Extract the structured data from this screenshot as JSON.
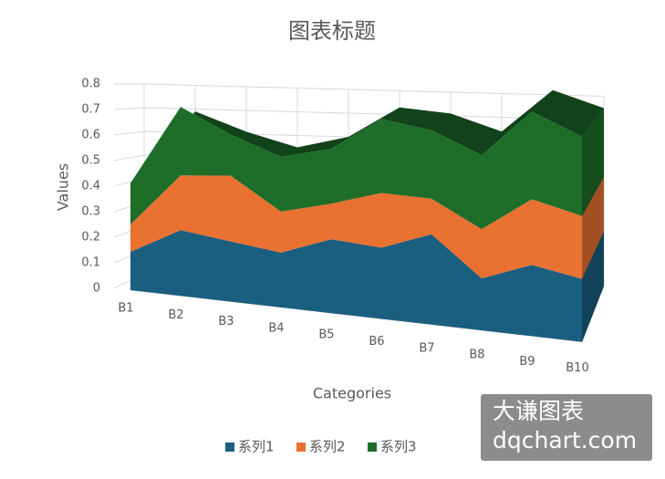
{
  "chart_data": {
    "type": "area3d",
    "title": "图表标题",
    "y_label": "Values",
    "x_label": "Categories",
    "categories": [
      "B1",
      "B2",
      "B3",
      "B4",
      "B5",
      "B6",
      "B7",
      "B8",
      "B9",
      "B10"
    ],
    "series": [
      {
        "name": "系列1",
        "color": "#1a5e80",
        "values": [
          0.14,
          0.24,
          0.22,
          0.2,
          0.27,
          0.26,
          0.33,
          0.19,
          0.26,
          0.23
        ]
      },
      {
        "name": "系列2",
        "color": "#e97132",
        "values": [
          0.1,
          0.2,
          0.24,
          0.15,
          0.13,
          0.2,
          0.13,
          0.18,
          0.24,
          0.23
        ]
      },
      {
        "name": "系列3",
        "color": "#1e6e2a",
        "values": [
          0.15,
          0.25,
          0.15,
          0.2,
          0.2,
          0.27,
          0.25,
          0.27,
          0.32,
          0.29
        ]
      }
    ],
    "ylim": [
      0,
      0.8
    ],
    "yticks": [
      0,
      0.1,
      0.2,
      0.3,
      0.4,
      0.5,
      0.6,
      0.7,
      0.8
    ],
    "grid": true,
    "legend": "bottom",
    "watermark": [
      "大谦图表",
      "dqchart.com"
    ]
  }
}
